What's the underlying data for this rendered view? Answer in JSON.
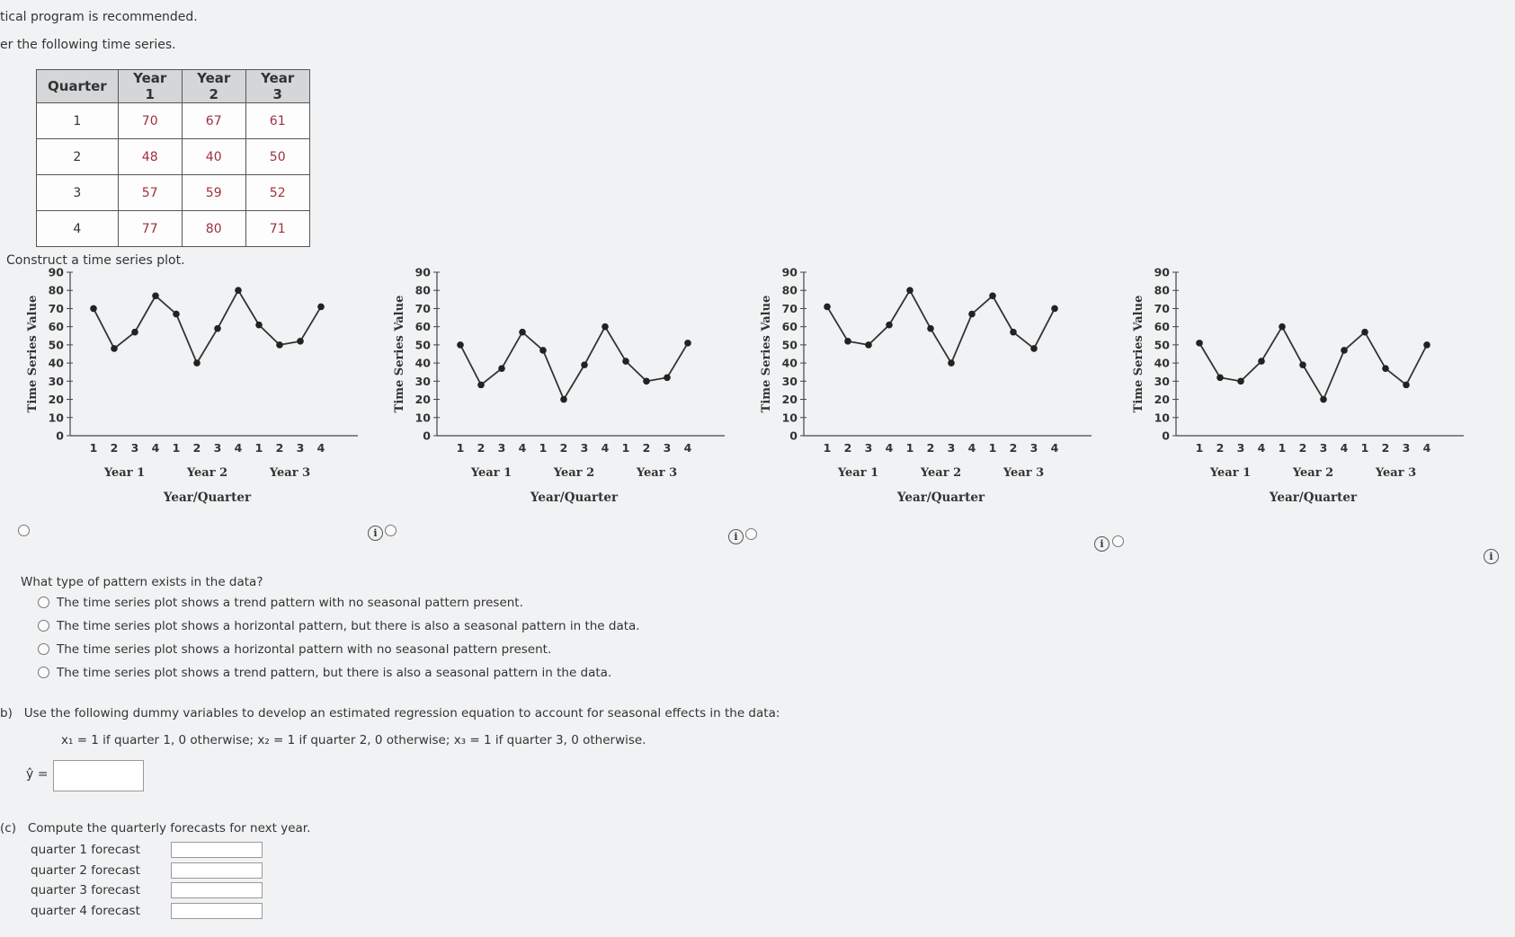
{
  "intro": {
    "line1": "tical program is recommended.",
    "line2": "er the following time series."
  },
  "table": {
    "headers": [
      "Quarter",
      "Year 1",
      "Year 2",
      "Year 3"
    ],
    "rows": [
      [
        "1",
        "70",
        "67",
        "61"
      ],
      [
        "2",
        "48",
        "40",
        "50"
      ],
      [
        "3",
        "57",
        "59",
        "52"
      ],
      [
        "4",
        "77",
        "80",
        "71"
      ]
    ]
  },
  "construct_prompt": "Construct a time series plot.",
  "chart_data": [
    {
      "type": "line",
      "ylabel": "Time Series Value",
      "xlabel": "Year/Quarter",
      "ylim": [
        0,
        90
      ],
      "yticks": [
        0,
        10,
        20,
        30,
        40,
        50,
        60,
        70,
        80,
        90
      ],
      "quarter_labels": [
        "1",
        "2",
        "3",
        "4",
        "1",
        "2",
        "3",
        "4",
        "1",
        "2",
        "3",
        "4"
      ],
      "year_labels": [
        "Year 1",
        "Year 2",
        "Year 3"
      ],
      "values": [
        70,
        48,
        57,
        77,
        67,
        40,
        59,
        80,
        61,
        50,
        52,
        71
      ]
    },
    {
      "type": "line",
      "ylabel": "Time Series Value",
      "xlabel": "Year/Quarter",
      "ylim": [
        0,
        90
      ],
      "yticks": [
        0,
        10,
        20,
        30,
        40,
        50,
        60,
        70,
        80,
        90
      ],
      "quarter_labels": [
        "1",
        "2",
        "3",
        "4",
        "1",
        "2",
        "3",
        "4",
        "1",
        "2",
        "3",
        "4"
      ],
      "year_labels": [
        "Year 1",
        "Year 2",
        "Year 3"
      ],
      "values": [
        50,
        28,
        37,
        57,
        47,
        20,
        39,
        60,
        41,
        30,
        32,
        51
      ]
    },
    {
      "type": "line",
      "ylabel": "Time Series Value",
      "xlabel": "Year/Quarter",
      "ylim": [
        0,
        90
      ],
      "yticks": [
        0,
        10,
        20,
        30,
        40,
        50,
        60,
        70,
        80,
        90
      ],
      "quarter_labels": [
        "1",
        "2",
        "3",
        "4",
        "1",
        "2",
        "3",
        "4",
        "1",
        "2",
        "3",
        "4"
      ],
      "year_labels": [
        "Year 1",
        "Year 2",
        "Year 3"
      ],
      "values": [
        71,
        52,
        50,
        61,
        80,
        59,
        40,
        67,
        77,
        57,
        48,
        70
      ]
    },
    {
      "type": "line",
      "ylabel": "Time Series Value",
      "xlabel": "Year/Quarter",
      "ylim": [
        0,
        90
      ],
      "yticks": [
        0,
        10,
        20,
        30,
        40,
        50,
        60,
        70,
        80,
        90
      ],
      "quarter_labels": [
        "1",
        "2",
        "3",
        "4",
        "1",
        "2",
        "3",
        "4",
        "1",
        "2",
        "3",
        "4"
      ],
      "year_labels": [
        "Year 1",
        "Year 2",
        "Year 3"
      ],
      "values": [
        51,
        32,
        30,
        41,
        60,
        39,
        20,
        47,
        57,
        37,
        28,
        50
      ]
    }
  ],
  "info_glyph": "i",
  "question_a": {
    "prompt": "What type of pattern exists in the data?",
    "options": [
      "The time series plot shows a trend pattern with no seasonal pattern present.",
      "The time series plot shows a horizontal pattern, but there is also a seasonal pattern in the data.",
      "The time series plot shows a horizontal pattern with no seasonal pattern present.",
      "The time series plot shows a trend pattern, but there is also a seasonal pattern in the data."
    ]
  },
  "question_b": {
    "prefix": "b)",
    "text": "Use the following dummy variables to develop an estimated regression equation to account for seasonal effects in the data:",
    "dummy_line": "x₁ = 1 if quarter 1, 0 otherwise; x₂ = 1 if quarter 2, 0 otherwise; x₃ = 1 if quarter 3, 0 otherwise.",
    "yhat_label": "ŷ =",
    "yhat_value": ""
  },
  "question_c": {
    "prefix": "(c)",
    "text": "Compute the quarterly forecasts for next year.",
    "forecasts": [
      {
        "label": "quarter 1 forecast",
        "value": ""
      },
      {
        "label": "quarter 2 forecast",
        "value": ""
      },
      {
        "label": "quarter 3 forecast",
        "value": ""
      },
      {
        "label": "quarter 4 forecast",
        "value": ""
      }
    ]
  }
}
